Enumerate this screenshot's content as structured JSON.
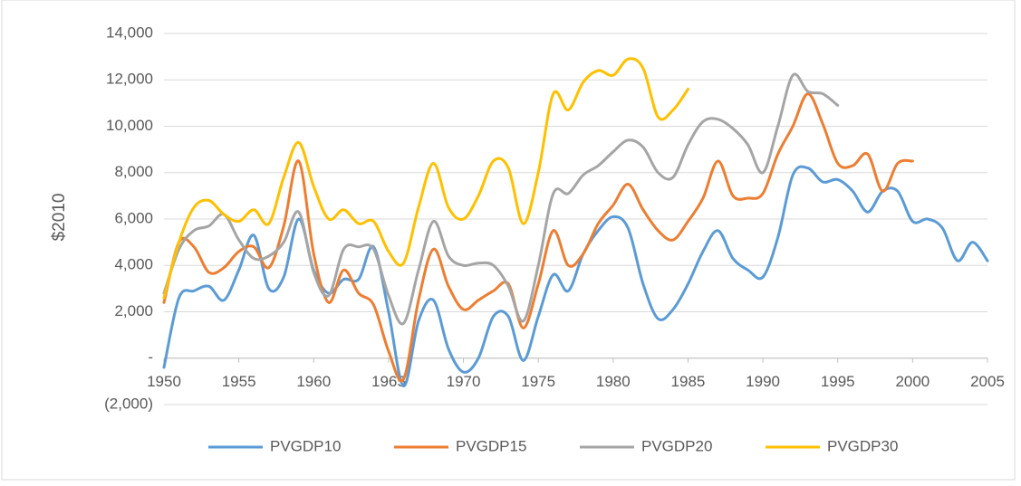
{
  "chart_data": {
    "type": "line",
    "y_label": "$2010",
    "x": [
      1950,
      1951,
      1952,
      1953,
      1954,
      1955,
      1956,
      1957,
      1958,
      1959,
      1960,
      1961,
      1962,
      1963,
      1964,
      1965,
      1966,
      1967,
      1968,
      1969,
      1970,
      1971,
      1972,
      1973,
      1974,
      1975,
      1976,
      1977,
      1978,
      1979,
      1980,
      1981,
      1982,
      1983,
      1984,
      1985,
      1986,
      1987,
      1988,
      1989,
      1990,
      1991,
      1992,
      1993,
      1994,
      1995,
      1996,
      1997,
      1998,
      1999,
      2000,
      2001,
      2002,
      2003,
      2004,
      2005
    ],
    "series": [
      {
        "name": "PVGDP10",
        "color": "#5b9bd5",
        "values": [
          -400,
          2600,
          2900,
          3100,
          2500,
          3800,
          5300,
          3000,
          3500,
          6000,
          3800,
          2800,
          3400,
          3400,
          4800,
          2000,
          -1200,
          1600,
          2500,
          400,
          -600,
          0,
          1800,
          1800,
          -100,
          1800,
          3600,
          2900,
          4500,
          5500,
          6100,
          5600,
          3200,
          1700,
          2100,
          3200,
          4600,
          5500,
          4300,
          3800,
          3500,
          5200,
          7900,
          8200,
          7600,
          7700,
          7200,
          6300,
          7200,
          7200,
          5900,
          6000,
          5600,
          4200,
          5000,
          4200
        ]
      },
      {
        "name": "PVGDP15",
        "color": "#ed7d31",
        "values": [
          2400,
          5000,
          4800,
          3700,
          3900,
          4600,
          4800,
          3900,
          5700,
          8500,
          4500,
          2400,
          3800,
          2800,
          2300,
          300,
          -900,
          2500,
          4700,
          3100,
          2100,
          2500,
          2900,
          3200,
          1300,
          3200,
          5500,
          4000,
          4500,
          5800,
          6600,
          7500,
          6400,
          5500,
          5100,
          5900,
          6900,
          8500,
          7000,
          6900,
          7100,
          8800,
          10000,
          11400,
          10100,
          8400,
          8300,
          8800,
          7200,
          8400,
          8500,
          null,
          null,
          null,
          null,
          null
        ]
      },
      {
        "name": "PVGDP20",
        "color": "#a5a5a5",
        "values": [
          2800,
          4700,
          5500,
          5700,
          6200,
          5100,
          4300,
          4400,
          5000,
          6300,
          3700,
          2700,
          4700,
          4800,
          4700,
          2700,
          1500,
          3800,
          5900,
          4400,
          4000,
          4100,
          4000,
          3100,
          1600,
          4000,
          7100,
          7100,
          7900,
          8300,
          8900,
          9400,
          9100,
          8000,
          7800,
          9200,
          10200,
          10300,
          9900,
          9200,
          8000,
          10000,
          12200,
          11500,
          11400,
          10900,
          null,
          null,
          null,
          null,
          null,
          null,
          null,
          null,
          null,
          null
        ]
      },
      {
        "name": "PVGDP30",
        "color": "#ffc000",
        "values": [
          2600,
          5000,
          6500,
          6800,
          6200,
          5900,
          6400,
          5800,
          7800,
          9300,
          7400,
          6000,
          6400,
          5800,
          5900,
          4600,
          4100,
          6500,
          8400,
          6500,
          6000,
          7000,
          8500,
          8200,
          5800,
          8000,
          11400,
          10700,
          11900,
          12400,
          12200,
          12900,
          12500,
          10400,
          10700,
          11600,
          null,
          null,
          null,
          null,
          null,
          null,
          null,
          null,
          null,
          null,
          null,
          null,
          null,
          null,
          null,
          null,
          null,
          null,
          null,
          null
        ]
      }
    ],
    "xlim": [
      1950,
      2005
    ],
    "xticks": [
      1950,
      1955,
      1960,
      1965,
      1970,
      1975,
      1980,
      1985,
      1990,
      1995,
      2000,
      2005
    ],
    "ylim": [
      -2000,
      14000
    ],
    "yticks": [
      {
        "value": -2000,
        "label": "(2,000)"
      },
      {
        "value": 0,
        "label": "-"
      },
      {
        "value": 2000,
        "label": "2,000"
      },
      {
        "value": 4000,
        "label": "4,000"
      },
      {
        "value": 6000,
        "label": "6,000"
      },
      {
        "value": 8000,
        "label": "8,000"
      },
      {
        "value": 10000,
        "label": "10,000"
      },
      {
        "value": 12000,
        "label": "12,000"
      },
      {
        "value": 14000,
        "label": "14,000"
      }
    ],
    "grid": true,
    "legend": "bottom"
  }
}
